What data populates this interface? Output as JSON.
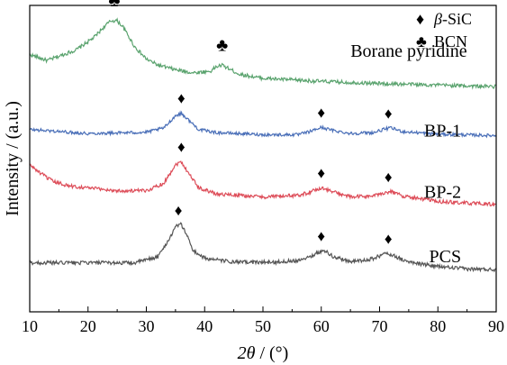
{
  "chart_data": {
    "type": "line",
    "title": "",
    "xlabel": {
      "italic": "2θ",
      "rest": " / (°)"
    },
    "ylabel": "Intensity / (a.u.)",
    "xlim": [
      10,
      90
    ],
    "xticks": [
      10,
      20,
      30,
      40,
      50,
      60,
      70,
      80,
      90
    ],
    "ylim": [
      0,
      1
    ],
    "yticks_shown": false,
    "grid": false,
    "legend": {
      "placement": "top-right",
      "entries": [
        {
          "symbol": "♦",
          "italic": "β",
          "rest": "-SiC"
        },
        {
          "symbol": "♣",
          "italic": "",
          "rest": "BCN"
        }
      ]
    },
    "series": [
      {
        "name": "Borane pyridine",
        "color": "#5aa36e",
        "noise": 0.006,
        "baseline": [
          [
            10,
            0.84
          ],
          [
            13,
            0.82
          ],
          [
            18,
            0.855
          ],
          [
            21,
            0.895
          ],
          [
            23,
            0.935
          ],
          [
            24,
            0.95
          ],
          [
            25,
            0.95
          ],
          [
            26,
            0.93
          ],
          [
            28,
            0.865
          ],
          [
            30,
            0.825
          ],
          [
            32,
            0.805
          ],
          [
            35,
            0.79
          ],
          [
            38,
            0.78
          ],
          [
            41,
            0.785
          ],
          [
            42,
            0.8
          ],
          [
            43,
            0.805
          ],
          [
            44,
            0.795
          ],
          [
            46,
            0.775
          ],
          [
            50,
            0.762
          ],
          [
            60,
            0.752
          ],
          [
            70,
            0.745
          ],
          [
            80,
            0.74
          ],
          [
            90,
            0.735
          ]
        ],
        "markers": [
          {
            "x": 24.5,
            "symbol": "♣"
          },
          {
            "x": 43,
            "symbol": "♣"
          }
        ]
      },
      {
        "name": "BP-1",
        "color": "#4a6fb8",
        "noise": 0.005,
        "baseline": [
          [
            10,
            0.595
          ],
          [
            20,
            0.582
          ],
          [
            30,
            0.586
          ],
          [
            33,
            0.6
          ],
          [
            35,
            0.64
          ],
          [
            36,
            0.648
          ],
          [
            37,
            0.63
          ],
          [
            39,
            0.595
          ],
          [
            42,
            0.585
          ],
          [
            50,
            0.578
          ],
          [
            56,
            0.578
          ],
          [
            58,
            0.588
          ],
          [
            60,
            0.602
          ],
          [
            62,
            0.592
          ],
          [
            65,
            0.582
          ],
          [
            69,
            0.585
          ],
          [
            71,
            0.597
          ],
          [
            72,
            0.6
          ],
          [
            74,
            0.588
          ],
          [
            80,
            0.58
          ],
          [
            90,
            0.575
          ]
        ],
        "markers": [
          {
            "x": 36,
            "symbol": "♦"
          },
          {
            "x": 60,
            "symbol": "♦"
          },
          {
            "x": 71.5,
            "symbol": "♦"
          }
        ]
      },
      {
        "name": "BP-2",
        "color": "#dd4c58",
        "noise": 0.006,
        "baseline": [
          [
            10,
            0.48
          ],
          [
            12,
            0.45
          ],
          [
            14,
            0.425
          ],
          [
            17,
            0.41
          ],
          [
            20,
            0.405
          ],
          [
            25,
            0.395
          ],
          [
            30,
            0.395
          ],
          [
            33,
            0.42
          ],
          [
            35,
            0.48
          ],
          [
            36,
            0.49
          ],
          [
            37,
            0.46
          ],
          [
            39,
            0.405
          ],
          [
            42,
            0.385
          ],
          [
            50,
            0.375
          ],
          [
            56,
            0.38
          ],
          [
            58,
            0.39
          ],
          [
            60,
            0.405
          ],
          [
            62,
            0.392
          ],
          [
            65,
            0.375
          ],
          [
            69,
            0.378
          ],
          [
            71,
            0.39
          ],
          [
            72,
            0.392
          ],
          [
            74,
            0.378
          ],
          [
            80,
            0.36
          ],
          [
            90,
            0.35
          ]
        ],
        "markers": [
          {
            "x": 36,
            "symbol": "♦"
          },
          {
            "x": 60,
            "symbol": "♦"
          },
          {
            "x": 71.5,
            "symbol": "♦"
          }
        ]
      },
      {
        "name": "PCS",
        "color": "#555555",
        "noise": 0.006,
        "baseline": [
          [
            10,
            0.16
          ],
          [
            20,
            0.16
          ],
          [
            28,
            0.16
          ],
          [
            32,
            0.18
          ],
          [
            34,
            0.24
          ],
          [
            35,
            0.28
          ],
          [
            36,
            0.285
          ],
          [
            37,
            0.25
          ],
          [
            38,
            0.2
          ],
          [
            40,
            0.175
          ],
          [
            45,
            0.162
          ],
          [
            52,
            0.162
          ],
          [
            56,
            0.168
          ],
          [
            58,
            0.18
          ],
          [
            60,
            0.198
          ],
          [
            61,
            0.195
          ],
          [
            62,
            0.18
          ],
          [
            65,
            0.165
          ],
          [
            68,
            0.168
          ],
          [
            70,
            0.182
          ],
          [
            71,
            0.19
          ],
          [
            72,
            0.188
          ],
          [
            73,
            0.178
          ],
          [
            75,
            0.162
          ],
          [
            80,
            0.148
          ],
          [
            85,
            0.14
          ],
          [
            90,
            0.138
          ]
        ],
        "markers": [
          {
            "x": 35.5,
            "symbol": "♦"
          },
          {
            "x": 60,
            "symbol": "♦"
          },
          {
            "x": 71.5,
            "symbol": "♦"
          }
        ]
      }
    ]
  }
}
